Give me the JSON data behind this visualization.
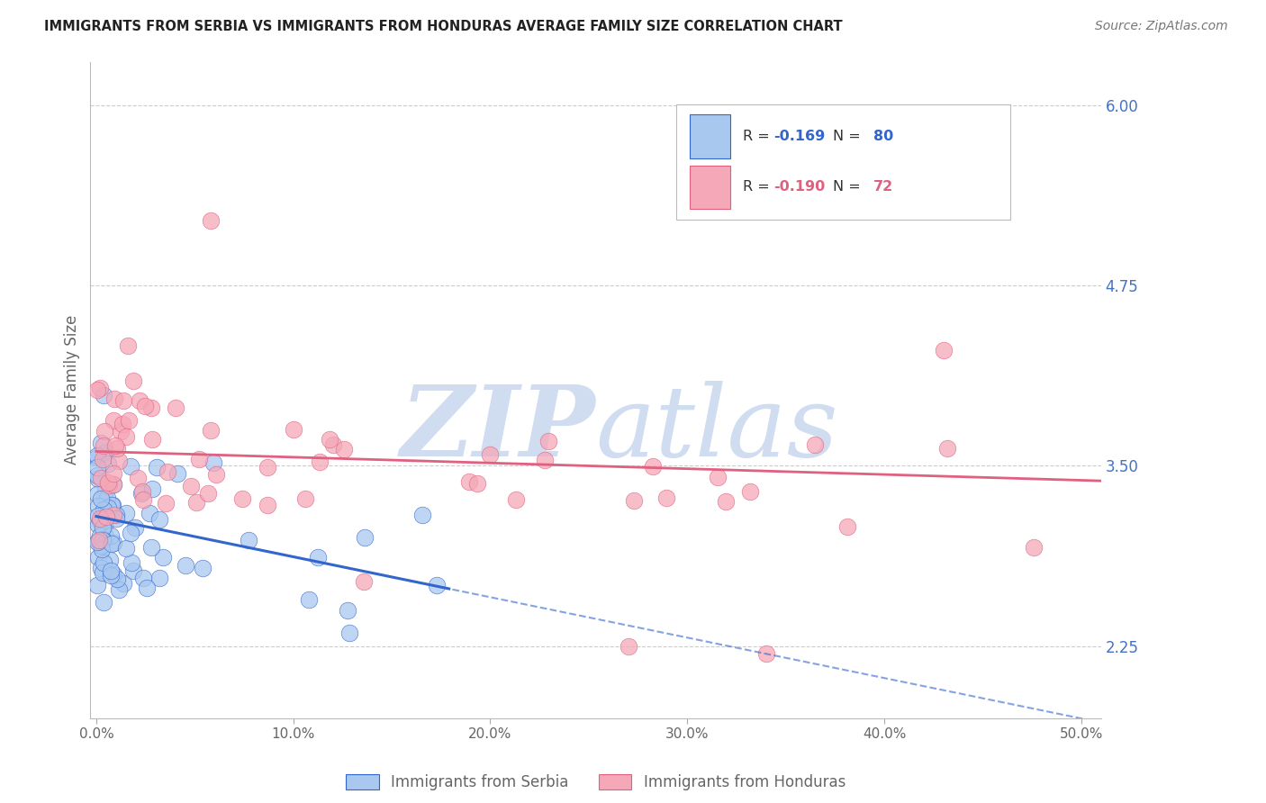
{
  "title": "IMMIGRANTS FROM SERBIA VS IMMIGRANTS FROM HONDURAS AVERAGE FAMILY SIZE CORRELATION CHART",
  "source": "Source: ZipAtlas.com",
  "ylabel": "Average Family Size",
  "xlabel_ticks": [
    "0.0%",
    "10.0%",
    "20.0%",
    "30.0%",
    "40.0%",
    "50.0%"
  ],
  "xlabel_vals": [
    0.0,
    10.0,
    20.0,
    30.0,
    40.0,
    50.0
  ],
  "yticks": [
    2.25,
    3.5,
    4.75,
    6.0
  ],
  "ylim": [
    1.75,
    6.3
  ],
  "xlim": [
    -0.3,
    51.0
  ],
  "serbia_color": "#A8C8F0",
  "honduras_color": "#F5A8B8",
  "serbia_line_color": "#3366CC",
  "honduras_line_color": "#E06080",
  "legend_label_serbia": "Immigrants from Serbia",
  "legend_label_honduras": "Immigrants from Honduras",
  "background_color": "#ffffff",
  "grid_color": "#cccccc",
  "axis_color": "#bbbbbb",
  "title_color": "#222222",
  "right_ytick_color": "#4472C4",
  "watermark_color": "#D0DCF0",
  "serbia_slope": -0.028,
  "serbia_intercept": 3.15,
  "honduras_slope": -0.004,
  "honduras_intercept": 3.6,
  "serbia_solid_end": 18.0,
  "scatter_size": 180
}
